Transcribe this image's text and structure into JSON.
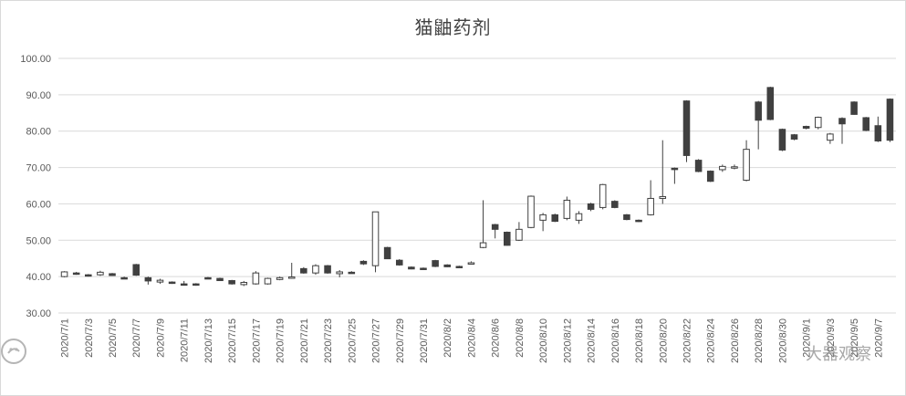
{
  "chart_data": {
    "type": "candlestick",
    "title": "猫鼬药剂",
    "xlabel": "",
    "ylabel": "",
    "ylim": [
      30,
      100
    ],
    "yticks": [
      "30.00",
      "40.00",
      "50.00",
      "60.00",
      "70.00",
      "80.00",
      "90.00",
      "100.00"
    ],
    "grid": true,
    "legend": "none",
    "colors": {
      "up": "#ffffff",
      "down": "#404040",
      "outline": "#404040",
      "grid": "#d9d9d9"
    },
    "x_tick_labels": [
      "2020/7/1",
      "2020/7/3",
      "2020/7/5",
      "2020/7/7",
      "2020/7/9",
      "2020/7/11",
      "2020/7/13",
      "2020/7/15",
      "2020/7/17",
      "2020/7/19",
      "2020/7/21",
      "2020/7/23",
      "2020/7/25",
      "2020/7/27",
      "2020/7/29",
      "2020/7/31",
      "2020/8/2",
      "2020/8/4",
      "2020/8/6",
      "2020/8/8",
      "2020/8/10",
      "2020/8/12",
      "2020/8/14",
      "2020/8/16",
      "2020/8/18",
      "2020/8/20",
      "2020/8/22",
      "2020/8/24",
      "2020/8/26",
      "2020/8/28",
      "2020/8/30",
      "2020/9/1",
      "2020/9/3",
      "2020/9/5",
      "2020/9/7"
    ],
    "candles": [
      {
        "o": 40.0,
        "h": 41.5,
        "l": 39.8,
        "c": 41.3
      },
      {
        "o": 41.0,
        "h": 41.3,
        "l": 40.5,
        "c": 40.7
      },
      {
        "o": 40.5,
        "h": 40.7,
        "l": 40.0,
        "c": 40.2
      },
      {
        "o": 40.5,
        "h": 41.6,
        "l": 40.2,
        "c": 41.2
      },
      {
        "o": 40.8,
        "h": 41.0,
        "l": 40.2,
        "c": 40.3
      },
      {
        "o": 39.7,
        "h": 40.0,
        "l": 39.3,
        "c": 39.5
      },
      {
        "o": 43.3,
        "h": 43.5,
        "l": 40.2,
        "c": 40.4
      },
      {
        "o": 39.7,
        "h": 40.0,
        "l": 37.8,
        "c": 38.8
      },
      {
        "o": 38.5,
        "h": 39.4,
        "l": 38.0,
        "c": 39.0
      },
      {
        "o": 38.5,
        "h": 38.7,
        "l": 38.0,
        "c": 38.2
      },
      {
        "o": 38.0,
        "h": 38.8,
        "l": 37.6,
        "c": 37.8
      },
      {
        "o": 38.0,
        "h": 38.2,
        "l": 37.5,
        "c": 37.7
      },
      {
        "o": 39.7,
        "h": 39.9,
        "l": 39.3,
        "c": 39.5
      },
      {
        "o": 39.5,
        "h": 39.7,
        "l": 38.8,
        "c": 38.9
      },
      {
        "o": 38.9,
        "h": 39.1,
        "l": 37.8,
        "c": 38.0
      },
      {
        "o": 37.8,
        "h": 38.8,
        "l": 37.4,
        "c": 38.4
      },
      {
        "o": 38.0,
        "h": 41.5,
        "l": 37.8,
        "c": 41.0
      },
      {
        "o": 38.0,
        "h": 39.7,
        "l": 37.8,
        "c": 39.5
      },
      {
        "o": 39.2,
        "h": 40.0,
        "l": 39.0,
        "c": 39.7
      },
      {
        "o": 39.7,
        "h": 43.8,
        "l": 39.4,
        "c": 39.9
      },
      {
        "o": 42.2,
        "h": 42.6,
        "l": 40.8,
        "c": 41.0
      },
      {
        "o": 41.0,
        "h": 43.4,
        "l": 40.5,
        "c": 43.0
      },
      {
        "o": 43.0,
        "h": 43.2,
        "l": 40.8,
        "c": 41.0
      },
      {
        "o": 40.8,
        "h": 41.8,
        "l": 39.8,
        "c": 41.3
      },
      {
        "o": 41.2,
        "h": 41.5,
        "l": 40.8,
        "c": 41.0
      },
      {
        "o": 44.2,
        "h": 44.5,
        "l": 43.2,
        "c": 43.5
      },
      {
        "o": 43.0,
        "h": 57.8,
        "l": 41.2,
        "c": 57.8
      },
      {
        "o": 48.0,
        "h": 48.2,
        "l": 44.8,
        "c": 44.9
      },
      {
        "o": 44.5,
        "h": 44.8,
        "l": 43.0,
        "c": 43.2
      },
      {
        "o": 42.6,
        "h": 42.8,
        "l": 42.0,
        "c": 42.1
      },
      {
        "o": 42.3,
        "h": 42.5,
        "l": 41.8,
        "c": 42.0
      },
      {
        "o": 44.4,
        "h": 44.6,
        "l": 42.6,
        "c": 42.8
      },
      {
        "o": 43.2,
        "h": 43.4,
        "l": 42.6,
        "c": 42.7
      },
      {
        "o": 42.8,
        "h": 43.0,
        "l": 42.4,
        "c": 42.5
      },
      {
        "o": 43.5,
        "h": 44.2,
        "l": 43.3,
        "c": 43.8
      },
      {
        "o": 48.0,
        "h": 61.0,
        "l": 47.8,
        "c": 49.3
      },
      {
        "o": 54.3,
        "h": 54.5,
        "l": 50.5,
        "c": 53.0
      },
      {
        "o": 52.2,
        "h": 52.4,
        "l": 48.5,
        "c": 48.6
      },
      {
        "o": 50.0,
        "h": 55.0,
        "l": 49.8,
        "c": 53.0
      },
      {
        "o": 53.5,
        "h": 62.3,
        "l": 53.3,
        "c": 62.1
      },
      {
        "o": 55.5,
        "h": 57.5,
        "l": 52.5,
        "c": 57.0
      },
      {
        "o": 57.0,
        "h": 57.3,
        "l": 55.0,
        "c": 55.2
      },
      {
        "o": 56.0,
        "h": 62.0,
        "l": 55.5,
        "c": 61.0
      },
      {
        "o": 55.5,
        "h": 58.0,
        "l": 54.5,
        "c": 57.3
      },
      {
        "o": 60.0,
        "h": 60.3,
        "l": 58.0,
        "c": 58.5
      },
      {
        "o": 59.0,
        "h": 65.5,
        "l": 58.5,
        "c": 65.3
      },
      {
        "o": 60.7,
        "h": 61.0,
        "l": 58.8,
        "c": 59.0
      },
      {
        "o": 57.0,
        "h": 57.2,
        "l": 55.5,
        "c": 55.7
      },
      {
        "o": 55.5,
        "h": 55.7,
        "l": 55.0,
        "c": 55.2
      },
      {
        "o": 57.0,
        "h": 66.5,
        "l": 56.8,
        "c": 61.5
      },
      {
        "o": 61.5,
        "h": 77.5,
        "l": 60.0,
        "c": 62.0
      },
      {
        "o": 69.8,
        "h": 70.0,
        "l": 65.5,
        "c": 69.5
      },
      {
        "o": 88.3,
        "h": 88.5,
        "l": 71.5,
        "c": 73.3
      },
      {
        "o": 72.0,
        "h": 72.3,
        "l": 68.7,
        "c": 68.9
      },
      {
        "o": 69.0,
        "h": 69.2,
        "l": 66.0,
        "c": 66.2
      },
      {
        "o": 69.4,
        "h": 70.8,
        "l": 68.8,
        "c": 70.3
      },
      {
        "o": 70.0,
        "h": 70.8,
        "l": 69.5,
        "c": 70.2
      },
      {
        "o": 66.5,
        "h": 77.5,
        "l": 66.2,
        "c": 75.0
      },
      {
        "o": 88.0,
        "h": 88.3,
        "l": 75.0,
        "c": 83.0
      },
      {
        "o": 92.0,
        "h": 92.2,
        "l": 83.0,
        "c": 83.2
      },
      {
        "o": 80.5,
        "h": 80.7,
        "l": 74.5,
        "c": 74.8
      },
      {
        "o": 79.0,
        "h": 79.2,
        "l": 77.5,
        "c": 77.8
      },
      {
        "o": 81.3,
        "h": 81.5,
        "l": 80.5,
        "c": 80.8
      },
      {
        "o": 81.0,
        "h": 84.0,
        "l": 80.5,
        "c": 83.8
      },
      {
        "o": 77.5,
        "h": 79.5,
        "l": 76.5,
        "c": 79.2
      },
      {
        "o": 83.5,
        "h": 83.8,
        "l": 76.5,
        "c": 82.0
      },
      {
        "o": 88.0,
        "h": 88.2,
        "l": 84.5,
        "c": 84.6
      },
      {
        "o": 83.7,
        "h": 83.9,
        "l": 80.0,
        "c": 80.2
      },
      {
        "o": 81.5,
        "h": 84.0,
        "l": 77.0,
        "c": 77.3
      },
      {
        "o": 88.8,
        "h": 89.0,
        "l": 77.0,
        "c": 77.5
      }
    ]
  },
  "watermark": {
    "text": "大器观察"
  }
}
